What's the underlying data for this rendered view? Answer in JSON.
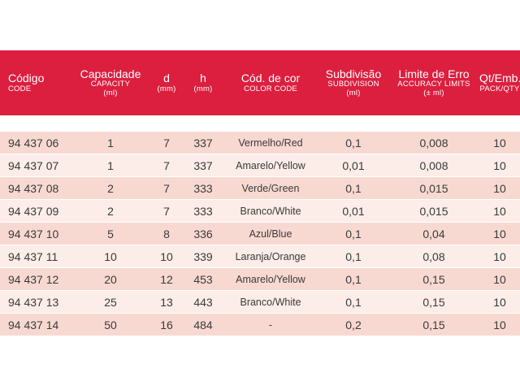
{
  "headers": [
    {
      "main": "Código",
      "sub": "CODE"
    },
    {
      "main": "Capacidade",
      "sub": "CAPACITY",
      "sub2": "(ml)"
    },
    {
      "main": "d",
      "sub": "(mm)"
    },
    {
      "main": "h",
      "sub": "(mm)"
    },
    {
      "main": "Cód. de cor",
      "sub": "COLOR CODE"
    },
    {
      "main": "Subdivisão",
      "sub": "SUBDIVISION",
      "sub2": "(ml)"
    },
    {
      "main": "Limite de Erro",
      "sub": "ACCURACY LIMITS",
      "sub2": "(± ml)"
    },
    {
      "main": "Qt/Emb.",
      "sub": "PACK/QTY"
    }
  ],
  "rows": [
    [
      "94 437 06",
      "1",
      "7",
      "337",
      "Vermelho/Red",
      "0,1",
      "0,008",
      "10"
    ],
    [
      "94 437 07",
      "1",
      "7",
      "337",
      "Amarelo/Yellow",
      "0,01",
      "0,008",
      "10"
    ],
    [
      "94 437 08",
      "2",
      "7",
      "333",
      "Verde/Green",
      "0,1",
      "0,015",
      "10"
    ],
    [
      "94 437 09",
      "2",
      "7",
      "333",
      "Branco/White",
      "0,01",
      "0,015",
      "10"
    ],
    [
      "94 437 10",
      "5",
      "8",
      "336",
      "Azul/Blue",
      "0,1",
      "0,04",
      "10"
    ],
    [
      "94 437 11",
      "10",
      "10",
      "339",
      "Laranja/Orange",
      "0,1",
      "0,08",
      "10"
    ],
    [
      "94 437 12",
      "20",
      "12",
      "453",
      "Amarelo/Yellow",
      "0,1",
      "0,15",
      "10"
    ],
    [
      "94 437 13",
      "25",
      "13",
      "443",
      "Branco/White",
      "0,1",
      "0,15",
      "10"
    ],
    [
      "94 437 14",
      "50",
      "16",
      "484",
      "-",
      "0,2",
      "0,15",
      "10"
    ]
  ],
  "colors": {
    "header_bg": "#dc1f3f",
    "row_odd": "#f8d9d1",
    "row_even": "#fcede8"
  }
}
